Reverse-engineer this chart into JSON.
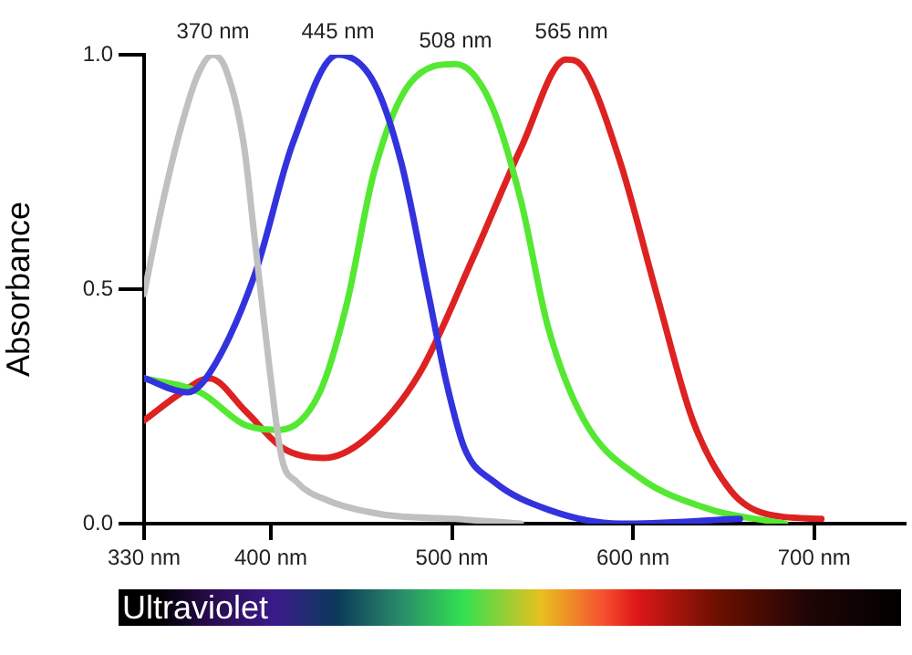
{
  "chart_data": {
    "type": "line",
    "ylabel": "Absorbance",
    "xlim": [
      330,
      750
    ],
    "xticks": [
      {
        "value": 330,
        "label": "330 nm"
      },
      {
        "value": 400,
        "label": "400 nm"
      },
      {
        "value": 500,
        "label": "500 nm"
      },
      {
        "value": 600,
        "label": "600 nm"
      },
      {
        "value": 700,
        "label": "700 nm"
      }
    ],
    "ylim": [
      0,
      1
    ],
    "yticks": [
      {
        "value": 0,
        "label": "0.0"
      },
      {
        "value": 0.5,
        "label": "0.5"
      },
      {
        "value": 1,
        "label": "1.0"
      }
    ],
    "grid": false,
    "legend": false,
    "marker": "none",
    "line_style": "solid",
    "series": [
      {
        "color": "#c0c0c0",
        "x": [
          330,
          340,
          350,
          360,
          368,
          375,
          385,
          391,
          399,
          406,
          414,
          431,
          461,
          502,
          538
        ],
        "values": [
          0.49,
          0.68,
          0.84,
          0.96,
          1.0,
          0.97,
          0.81,
          0.61,
          0.34,
          0.14,
          0.09,
          0.05,
          0.02,
          0.01,
          0.0
        ]
      },
      {
        "color": "#3333dd",
        "x": [
          330,
          354,
          366,
          391,
          412,
          437,
          457,
          472,
          487,
          497,
          507,
          523,
          553,
          593,
          659
        ],
        "values": [
          0.31,
          0.28,
          0.32,
          0.53,
          0.81,
          1.0,
          0.94,
          0.77,
          0.49,
          0.3,
          0.16,
          0.09,
          0.03,
          0.0,
          0.01
        ]
      },
      {
        "color": "#55e833",
        "x": [
          330,
          361,
          386,
          405,
          427,
          442,
          457,
          477,
          502,
          521,
          538,
          553,
          573,
          603,
          643,
          684
        ],
        "values": [
          0.31,
          0.28,
          0.21,
          0.2,
          0.28,
          0.47,
          0.75,
          0.94,
          0.98,
          0.9,
          0.69,
          0.42,
          0.22,
          0.1,
          0.03,
          0.0
        ]
      },
      {
        "color": "#dd2222",
        "x": [
          330,
          351,
          366,
          386,
          407,
          429,
          452,
          482,
          512,
          538,
          563,
          573,
          593,
          613,
          633,
          654,
          674,
          704
        ],
        "values": [
          0.22,
          0.28,
          0.31,
          0.24,
          0.16,
          0.14,
          0.18,
          0.32,
          0.57,
          0.8,
          0.99,
          0.97,
          0.77,
          0.49,
          0.22,
          0.07,
          0.02,
          0.01
        ]
      }
    ],
    "annotations": [
      {
        "text": "370 nm",
        "x": 368,
        "y": 1
      },
      {
        "text": "445 nm",
        "x": 437,
        "y": 1
      },
      {
        "text": "508 nm",
        "x": 502,
        "y": 0.98
      },
      {
        "text": "565 nm",
        "x": 566,
        "y": 1
      },
      "Ultraviolet"
    ]
  }
}
